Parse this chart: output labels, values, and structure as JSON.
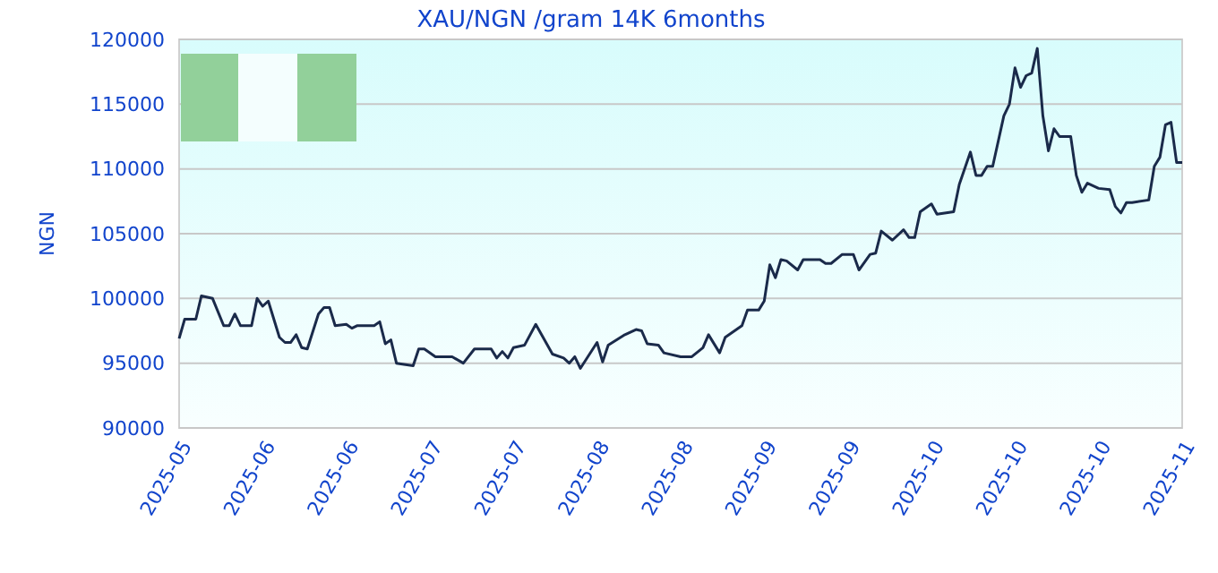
{
  "chart_data": {
    "type": "line",
    "title": "XAU/NGN /gram 14K 6months",
    "ylabel": "NGN",
    "x": [
      "2025-05-19",
      "2025-05-20",
      "2025-05-22",
      "2025-05-23",
      "2025-05-25",
      "2025-05-27",
      "2025-05-28",
      "2025-05-29",
      "2025-05-30",
      "2025-06-01",
      "2025-06-02",
      "2025-06-03",
      "2025-06-04",
      "2025-06-06",
      "2025-06-07",
      "2025-06-08",
      "2025-06-09",
      "2025-06-10",
      "2025-06-11",
      "2025-06-13",
      "2025-06-14",
      "2025-06-15",
      "2025-06-16",
      "2025-06-18",
      "2025-06-19",
      "2025-06-20",
      "2025-06-23",
      "2025-06-24",
      "2025-06-25",
      "2025-06-26",
      "2025-06-27",
      "2025-06-30",
      "2025-07-01",
      "2025-07-02",
      "2025-07-04",
      "2025-07-07",
      "2025-07-09",
      "2025-07-11",
      "2025-07-14",
      "2025-07-15",
      "2025-07-16",
      "2025-07-17",
      "2025-07-18",
      "2025-07-20",
      "2025-07-22",
      "2025-07-25",
      "2025-07-27",
      "2025-07-28",
      "2025-07-29",
      "2025-07-30",
      "2025-08-02",
      "2025-08-03",
      "2025-08-04",
      "2025-08-07",
      "2025-08-09",
      "2025-08-10",
      "2025-08-11",
      "2025-08-13",
      "2025-08-14",
      "2025-08-17",
      "2025-08-19",
      "2025-08-21",
      "2025-08-22",
      "2025-08-24",
      "2025-08-25",
      "2025-08-28",
      "2025-08-29",
      "2025-08-31",
      "2025-09-01",
      "2025-09-02",
      "2025-09-03",
      "2025-09-04",
      "2025-09-05",
      "2025-09-07",
      "2025-09-08",
      "2025-09-11",
      "2025-09-12",
      "2025-09-13",
      "2025-09-15",
      "2025-09-17",
      "2025-09-18",
      "2025-09-20",
      "2025-09-21",
      "2025-09-22",
      "2025-09-24",
      "2025-09-26",
      "2025-09-27",
      "2025-09-28",
      "2025-09-29",
      "2025-10-01",
      "2025-10-02",
      "2025-10-05",
      "2025-10-06",
      "2025-10-08",
      "2025-10-09",
      "2025-10-10",
      "2025-10-11",
      "2025-10-12",
      "2025-10-14",
      "2025-10-15",
      "2025-10-16",
      "2025-10-17",
      "2025-10-18",
      "2025-10-19",
      "2025-10-20",
      "2025-10-21",
      "2025-10-22",
      "2025-10-23",
      "2025-10-24",
      "2025-10-26",
      "2025-10-27",
      "2025-10-28",
      "2025-10-29",
      "2025-10-31",
      "2025-11-02",
      "2025-11-03",
      "2025-11-04",
      "2025-11-05",
      "2025-11-06",
      "2025-11-09",
      "2025-11-10",
      "2025-11-11",
      "2025-11-12",
      "2025-11-13",
      "2025-11-14",
      "2025-11-15"
    ],
    "series": [
      {
        "color": "#1a2a4a",
        "values": [
          96900,
          98400,
          98400,
          100200,
          100000,
          97900,
          97900,
          98800,
          97900,
          97900,
          100000,
          99400,
          99800,
          97000,
          96600,
          96600,
          97200,
          96200,
          96100,
          98800,
          99300,
          99300,
          97900,
          98000,
          97700,
          97900,
          97900,
          98200,
          96500,
          96800,
          95000,
          94800,
          96100,
          96100,
          95500,
          95500,
          95000,
          96100,
          96100,
          95400,
          95900,
          95400,
          96200,
          96400,
          98000,
          95700,
          95400,
          95000,
          95500,
          94600,
          96600,
          95100,
          96400,
          97200,
          97600,
          97500,
          96500,
          96400,
          95800,
          95500,
          95500,
          96200,
          97200,
          95800,
          97000,
          97900,
          99100,
          99100,
          99800,
          102600,
          101600,
          103000,
          102900,
          102200,
          103000,
          103000,
          102700,
          102700,
          103400,
          103400,
          102200,
          103400,
          103500,
          105200,
          104500,
          105300,
          104700,
          104700,
          106700,
          107300,
          106500,
          106700,
          108800,
          111300,
          109500,
          109500,
          110200,
          110200,
          114100,
          115000,
          117800,
          116300,
          117200,
          117400,
          119300,
          114100,
          111400,
          113100,
          112500,
          112500,
          109500,
          108200,
          108900,
          108500,
          108400,
          107100,
          106600,
          107400,
          107400,
          107600,
          110200,
          110900,
          113400,
          113600,
          110500,
          110500
        ]
      }
    ],
    "xlim": [
      "2025-05-19",
      "2025-11-15"
    ],
    "xticks": [
      {
        "value": "2025-05-19",
        "label": "2025-05"
      },
      {
        "value": "2025-06-03",
        "label": "2025-06"
      },
      {
        "value": "2025-06-18",
        "label": "2025-06"
      },
      {
        "value": "2025-07-03",
        "label": "2025-07"
      },
      {
        "value": "2025-07-18",
        "label": "2025-07"
      },
      {
        "value": "2025-08-02",
        "label": "2025-08"
      },
      {
        "value": "2025-08-17",
        "label": "2025-08"
      },
      {
        "value": "2025-09-01",
        "label": "2025-09"
      },
      {
        "value": "2025-09-16",
        "label": "2025-09"
      },
      {
        "value": "2025-10-01",
        "label": "2025-10"
      },
      {
        "value": "2025-10-16",
        "label": "2025-10"
      },
      {
        "value": "2025-10-31",
        "label": "2025-10"
      },
      {
        "value": "2025-11-15",
        "label": "2025-11"
      }
    ],
    "ylim": [
      90000,
      120000
    ],
    "yticks": [
      90000,
      95000,
      100000,
      105000,
      110000,
      115000,
      120000
    ],
    "grid": "y",
    "marker": "none",
    "line_style": "solid"
  }
}
